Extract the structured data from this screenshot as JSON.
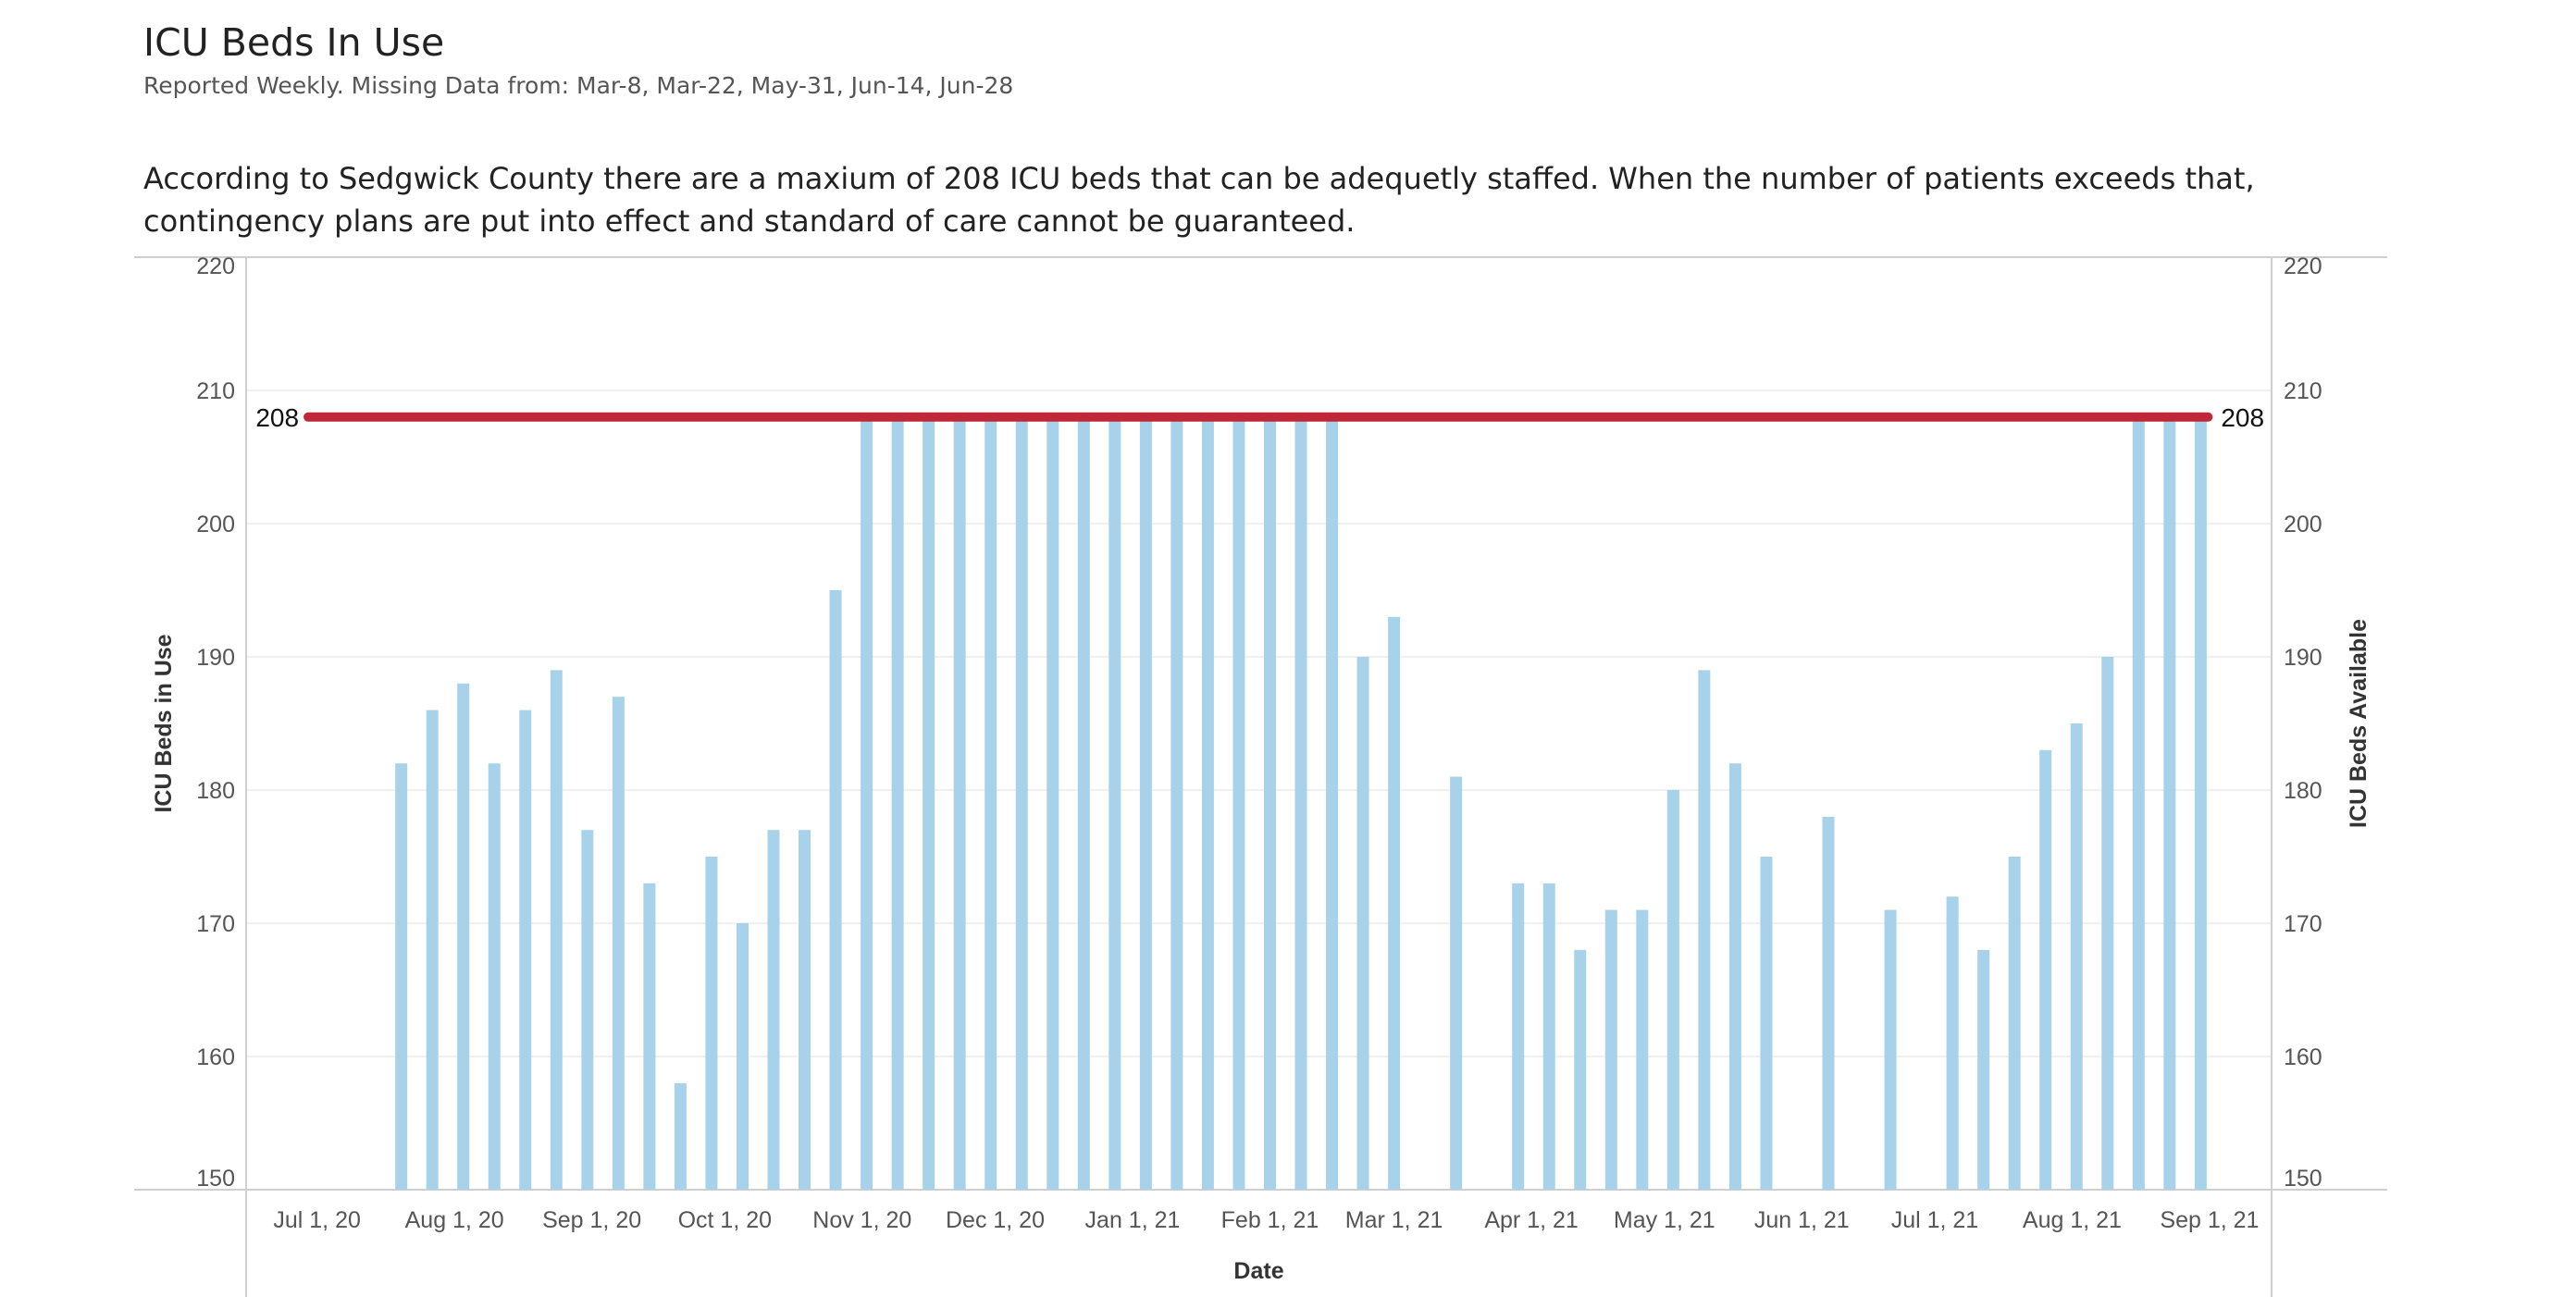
{
  "title": "ICU Beds In Use",
  "subtitle": "Reported Weekly. Missing Data from: Mar-8, Mar-22, May-31, Jun-14, Jun-28",
  "description": "According to Sedgwick County there are a maxium of 208 ICU beds that can be adequetly staffed. When the number of patients exceeds that, contingency plans are put into effect and standard of care cannot be guaranteed.",
  "chart_data": {
    "type": "bar",
    "xlabel": "Date",
    "ylabel": "ICU Beds in Use",
    "ylabel_right": "ICU Beds Available",
    "ylim": [
      150,
      220
    ],
    "yticks": [
      150,
      160,
      170,
      180,
      190,
      200,
      210,
      220
    ],
    "xlim": [
      "2020-06-15",
      "2021-09-15"
    ],
    "xticks": [
      {
        "date": "2020-07-01",
        "label": "Jul 1, 20"
      },
      {
        "date": "2020-08-01",
        "label": "Aug 1, 20"
      },
      {
        "date": "2020-09-01",
        "label": "Sep 1, 20"
      },
      {
        "date": "2020-10-01",
        "label": "Oct 1, 20"
      },
      {
        "date": "2020-11-01",
        "label": "Nov 1, 20"
      },
      {
        "date": "2020-12-01",
        "label": "Dec 1, 20"
      },
      {
        "date": "2021-01-01",
        "label": "Jan 1, 21"
      },
      {
        "date": "2021-02-01",
        "label": "Feb 1, 21"
      },
      {
        "date": "2021-03-01",
        "label": "Mar 1, 21"
      },
      {
        "date": "2021-04-01",
        "label": "Apr 1, 21"
      },
      {
        "date": "2021-05-01",
        "label": "May 1, 21"
      },
      {
        "date": "2021-06-01",
        "label": "Jun 1, 21"
      },
      {
        "date": "2021-07-01",
        "label": "Jul 1, 21"
      },
      {
        "date": "2021-08-01",
        "label": "Aug 1, 21"
      },
      {
        "date": "2021-09-01",
        "label": "Sep 1, 21"
      }
    ],
    "reference_line": {
      "value": 208,
      "label": "208",
      "color": "#c0283a",
      "start": "2020-06-29",
      "end": "2021-08-30"
    },
    "bar_color": "#a8d1ea",
    "series": [
      {
        "x": [
          "2020-07-20",
          "2020-07-27",
          "2020-08-03",
          "2020-08-10",
          "2020-08-17",
          "2020-08-24",
          "2020-08-31",
          "2020-09-07",
          "2020-09-14",
          "2020-09-21",
          "2020-09-28",
          "2020-10-05",
          "2020-10-12",
          "2020-10-19",
          "2020-10-26",
          "2020-11-02",
          "2020-11-09",
          "2020-11-16",
          "2020-11-23",
          "2020-11-30",
          "2020-12-07",
          "2020-12-14",
          "2020-12-21",
          "2020-12-28",
          "2021-01-04",
          "2021-01-11",
          "2021-01-18",
          "2021-01-25",
          "2021-02-01",
          "2021-02-08",
          "2021-02-15",
          "2021-02-22",
          "2021-03-01",
          "2021-03-15",
          "2021-03-29",
          "2021-04-05",
          "2021-04-12",
          "2021-04-19",
          "2021-04-26",
          "2021-05-03",
          "2021-05-10",
          "2021-05-17",
          "2021-05-24",
          "2021-06-07",
          "2021-06-21",
          "2021-07-05",
          "2021-07-12",
          "2021-07-19",
          "2021-07-26",
          "2021-08-02",
          "2021-08-09",
          "2021-08-16",
          "2021-08-23",
          "2021-08-30"
        ],
        "values": [
          182,
          186,
          188,
          182,
          186,
          189,
          177,
          187,
          173,
          158,
          175,
          170,
          177,
          177,
          195,
          208,
          208,
          208,
          208,
          208,
          208,
          208,
          208,
          208,
          208,
          208,
          208,
          208,
          208,
          208,
          208,
          190,
          193,
          181,
          173,
          173,
          168,
          171,
          171,
          180,
          189,
          182,
          175,
          178,
          171,
          172,
          168,
          175,
          183,
          185,
          190,
          208,
          208,
          208
        ]
      }
    ]
  }
}
